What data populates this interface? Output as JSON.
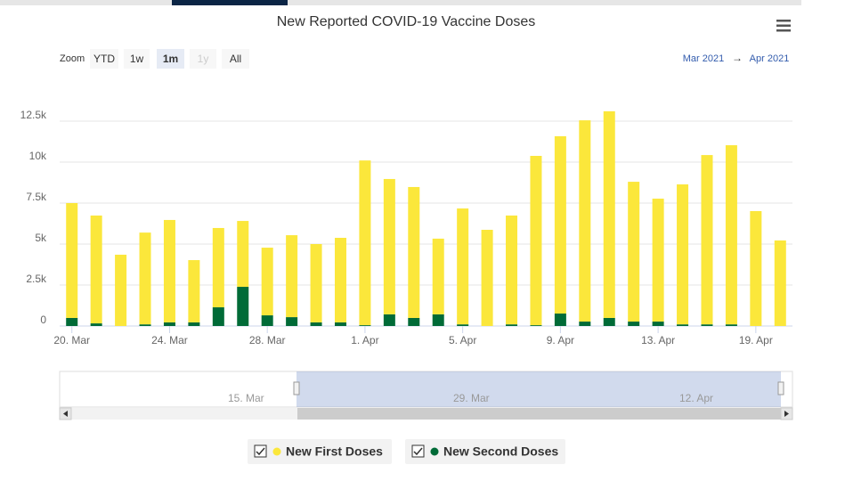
{
  "chart_data": {
    "type": "bar",
    "stacked": true,
    "title": "New Reported COVID-19 Vaccine Doses",
    "categories": [
      "20. Mar",
      null,
      null,
      null,
      "24. Mar",
      null,
      null,
      null,
      "28. Mar",
      null,
      null,
      null,
      "1. Apr",
      null,
      null,
      null,
      "5. Apr",
      null,
      null,
      null,
      "9. Apr",
      null,
      null,
      null,
      "13. Apr",
      null,
      null,
      null,
      "19. Apr",
      null
    ],
    "series": [
      {
        "name": "New First Doses",
        "color": "#fbe73b",
        "values": [
          7010,
          6580,
          4350,
          5600,
          6250,
          3800,
          4840,
          4020,
          4130,
          5000,
          4780,
          5160,
          10050,
          8260,
          7990,
          4620,
          7070,
          5870,
          6640,
          10330,
          10820,
          12280,
          12610,
          8530,
          7500,
          8540,
          10330,
          10930,
          7010,
          5220
        ]
      },
      {
        "name": "New Second Doses",
        "color": "#006b37",
        "values": [
          490,
          160,
          0,
          100,
          220,
          220,
          1140,
          2390,
          650,
          540,
          220,
          220,
          50,
          710,
          490,
          710,
          100,
          0,
          100,
          50,
          760,
          270,
          490,
          270,
          270,
          100,
          100,
          100,
          0,
          0
        ]
      }
    ],
    "ylim": [
      0,
      15000
    ],
    "yticks": [
      0,
      {
        "value": 2500,
        "label": "2.5k"
      },
      {
        "value": 5000,
        "label": "5k"
      },
      {
        "value": 7500,
        "label": "7.5k"
      },
      {
        "value": 10000,
        "label": "10k"
      },
      {
        "value": 12500,
        "label": "12.5k"
      }
    ],
    "grid": true,
    "zoom": {
      "label": "Zoom",
      "buttons": [
        "YTD",
        "1w",
        "1m",
        "1y",
        "All"
      ],
      "selected": 2,
      "disabled": 3
    },
    "range": {
      "from": "Mar 2021",
      "arrow": "→",
      "to": "Apr 2021"
    },
    "navigator_labels": [
      "15. Mar",
      "29. Mar",
      "12. Apr"
    ],
    "legend": "bottom"
  }
}
